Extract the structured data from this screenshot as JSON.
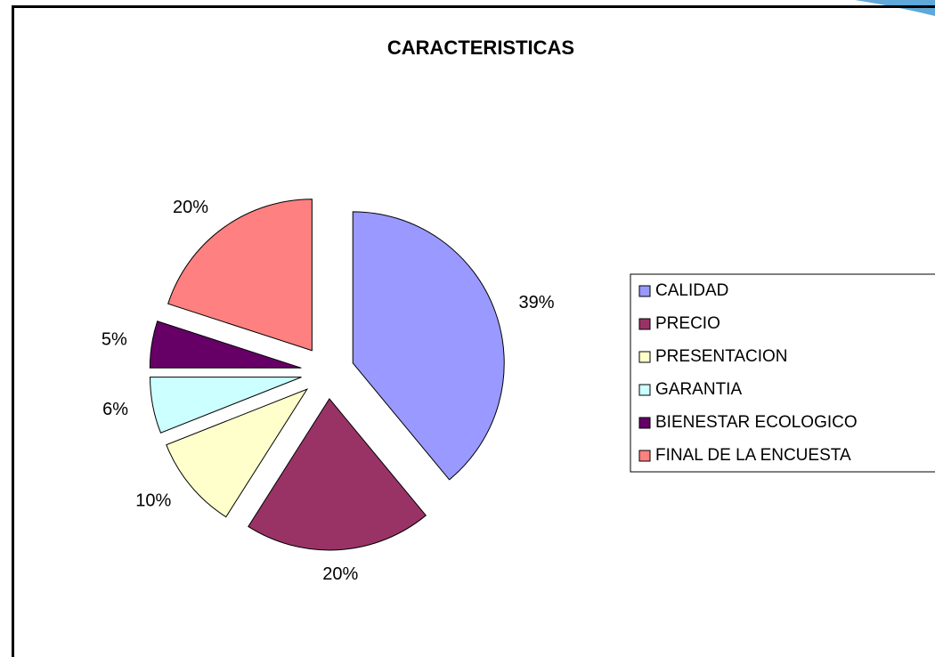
{
  "chart_data": {
    "type": "pie",
    "title": "CARACTERISTICAS",
    "categories": [
      "CALIDAD",
      "PRECIO",
      "PRESENTACION",
      "GARANTIA",
      "BIENESTAR ECOLOGICO",
      "FINAL DE LA ENCUESTA"
    ],
    "values": [
      39,
      20,
      10,
      6,
      5,
      20
    ],
    "value_labels": [
      "39%",
      "20%",
      "10%",
      "6%",
      "5%",
      "20%"
    ],
    "colors": [
      "#9999ff",
      "#993366",
      "#ffffcc",
      "#ccffff",
      "#660066",
      "#ff8080"
    ],
    "legend": "right"
  }
}
